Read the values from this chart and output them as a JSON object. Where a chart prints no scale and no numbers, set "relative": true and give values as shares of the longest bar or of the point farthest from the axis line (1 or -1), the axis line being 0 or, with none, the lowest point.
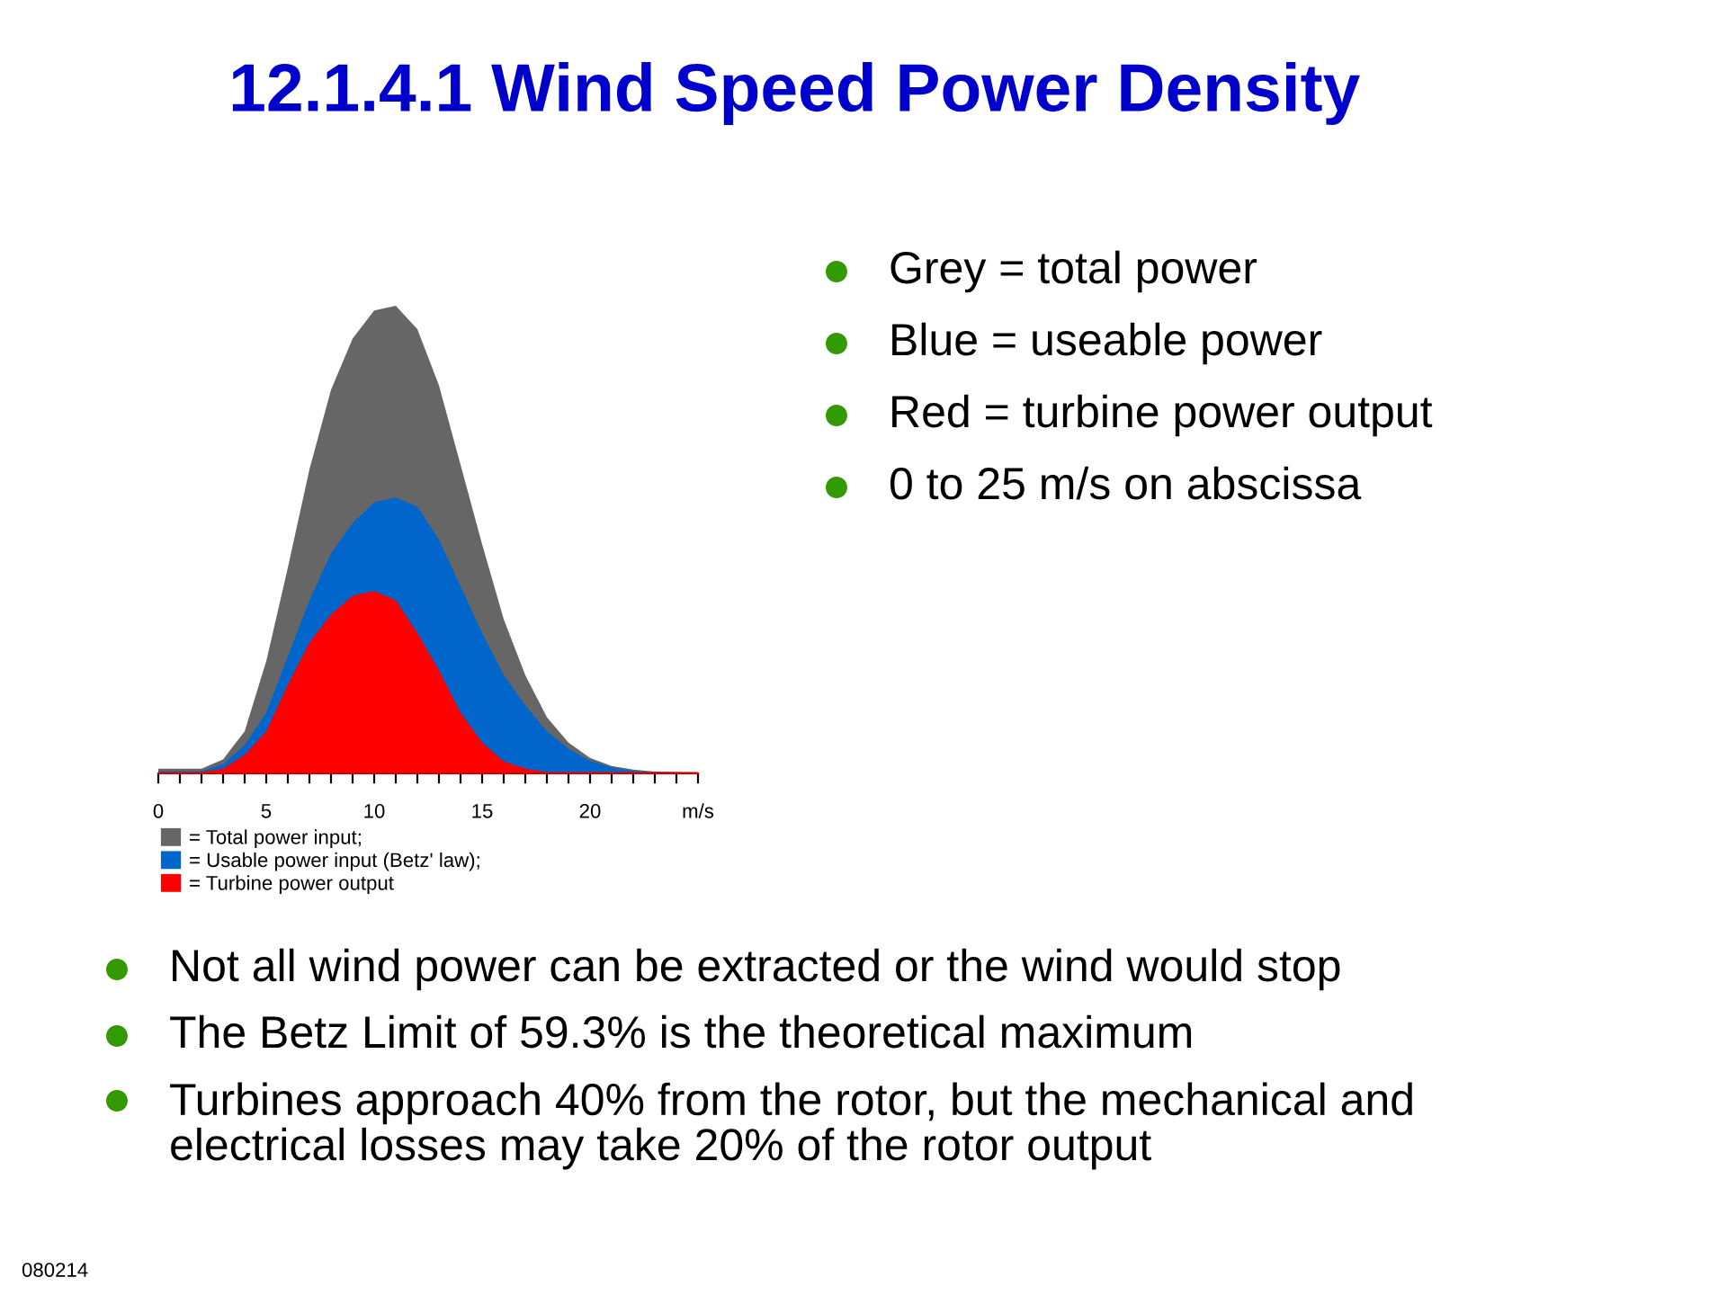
{
  "chart_data": {
    "type": "area",
    "title": "12.1.4.1 Wind Speed Power Density",
    "relative": true,
    "legend": "bottom",
    "grid": false,
    "x": [
      0,
      1,
      2,
      3,
      4,
      5,
      6,
      7,
      8,
      9,
      10,
      11,
      12,
      13,
      14,
      15,
      16,
      17,
      18,
      19,
      20,
      21,
      22,
      23,
      24,
      25
    ],
    "series": [
      {
        "name": "= Total power input;",
        "color": "#666666",
        "values": [
          0.01,
          0.01,
          0.01,
          0.03,
          0.09,
          0.24,
          0.44,
          0.65,
          0.82,
          0.93,
          0.99,
          1.0,
          0.95,
          0.83,
          0.66,
          0.49,
          0.33,
          0.21,
          0.12,
          0.066,
          0.033,
          0.016,
          0.008,
          0.004,
          0.003,
          0.002
        ]
      },
      {
        "name": "= Usable power input (Betz' law);",
        "color": "#0066cc",
        "values": [
          0.005,
          0.005,
          0.005,
          0.02,
          0.06,
          0.13,
          0.25,
          0.37,
          0.47,
          0.535,
          0.58,
          0.59,
          0.57,
          0.5,
          0.4,
          0.3,
          0.21,
          0.145,
          0.09,
          0.053,
          0.027,
          0.013,
          0.006,
          0.003,
          0.002,
          0.002
        ]
      },
      {
        "name": "= Turbine power output",
        "color": "#ff0000",
        "values": [
          0.003,
          0.003,
          0.003,
          0.01,
          0.04,
          0.09,
          0.19,
          0.28,
          0.34,
          0.38,
          0.39,
          0.37,
          0.3,
          0.22,
          0.13,
          0.066,
          0.026,
          0.01,
          0.003,
          0.003,
          0.003,
          0.003,
          0.003,
          0.003,
          0.003,
          0.003
        ]
      }
    ],
    "xlim": [
      0,
      25
    ],
    "xticks": [
      0,
      {
        "value": 1,
        "label": null
      },
      {
        "value": 2,
        "label": null
      },
      {
        "value": 3,
        "label": null
      },
      {
        "value": 4,
        "label": null
      },
      5,
      {
        "value": 6,
        "label": null
      },
      {
        "value": 7,
        "label": null
      },
      {
        "value": 8,
        "label": null
      },
      {
        "value": 9,
        "label": null
      },
      10,
      {
        "value": 11,
        "label": null
      },
      {
        "value": 12,
        "label": null
      },
      {
        "value": 13,
        "label": null
      },
      {
        "value": 14,
        "label": null
      },
      15,
      {
        "value": 16,
        "label": null
      },
      {
        "value": 17,
        "label": null
      },
      {
        "value": 18,
        "label": null
      },
      {
        "value": 19,
        "label": null
      },
      20,
      {
        "value": 21,
        "label": null
      },
      {
        "value": 22,
        "label": null
      },
      {
        "value": 23,
        "label": null
      },
      {
        "value": 24,
        "label": null
      },
      {
        "value": 25,
        "label": "m/s"
      }
    ],
    "annotations": [
      "Grey = total power",
      "Blue = useable power",
      "Red = turbine power output",
      "0 to 25 m/s on abscissa",
      "Not all wind power can be extracted or the wind would stop",
      "The Betz Limit of 59.3% is the theoretical maximum",
      "Turbines approach 40% from the rotor, but the mechanical and\nelectrical losses may take 20% of the rotor output",
      "080214"
    ]
  }
}
